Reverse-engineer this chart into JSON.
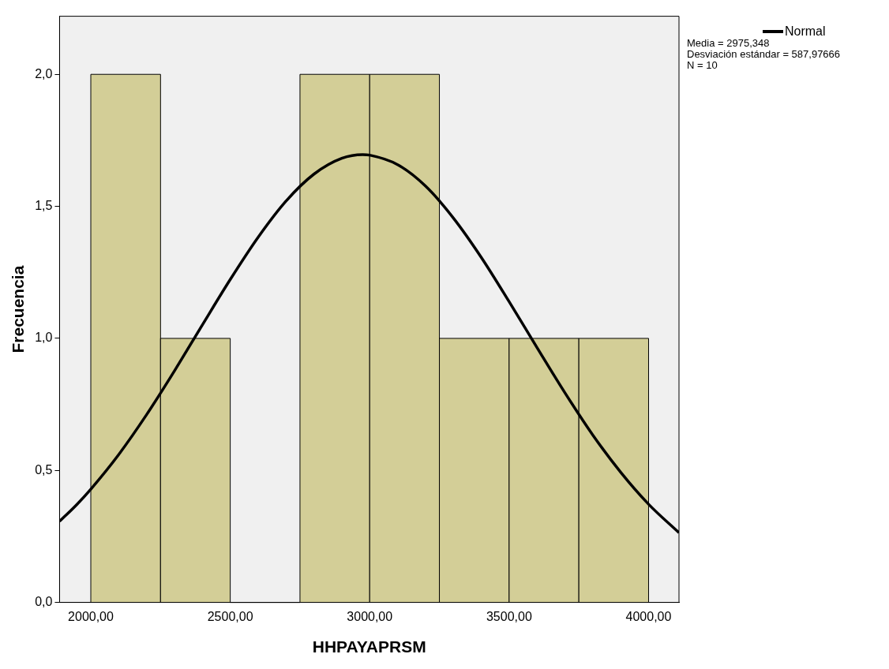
{
  "chart_data": {
    "type": "histogram",
    "xlabel": "HHPAYAPRSM",
    "ylabel": "Frecuencia",
    "bins": [
      2000,
      2250,
      2500,
      2750,
      3000,
      3250,
      3500,
      3750,
      4000
    ],
    "values": [
      2,
      1,
      0,
      2,
      2,
      1,
      1,
      1
    ],
    "color": "#d3ce97",
    "series": [
      {
        "type": "line",
        "name": "Normal",
        "color": "#000000",
        "x": [
          1888,
          1950,
          2000,
          2100,
          2200,
          2300,
          2400,
          2500,
          2600,
          2700,
          2800,
          2900,
          2975,
          3000,
          3100,
          3200,
          3300,
          3400,
          3500,
          3600,
          3700,
          3800,
          3900,
          4000,
          4109
        ],
        "values": [
          0.307,
          0.371,
          0.429,
          0.56,
          0.711,
          0.877,
          1.051,
          1.223,
          1.383,
          1.52,
          1.622,
          1.682,
          1.696,
          1.694,
          1.658,
          1.577,
          1.456,
          1.307,
          1.139,
          0.965,
          0.794,
          0.634,
          0.493,
          0.372,
          0.264
        ]
      }
    ],
    "xlim": [
      1888,
      4109
    ],
    "ylim": [
      0,
      2.22
    ],
    "xticks": [
      {
        "value": 2000,
        "label": "2000,00"
      },
      {
        "value": 2500,
        "label": "2500,00"
      },
      {
        "value": 3000,
        "label": "3000,00"
      },
      {
        "value": 3500,
        "label": "3500,00"
      },
      {
        "value": 4000,
        "label": "4000,00"
      }
    ],
    "yticks": [
      {
        "value": 0,
        "label": "0,0"
      },
      {
        "value": 0.5,
        "label": "0,5"
      },
      {
        "value": 1,
        "label": "1,0"
      },
      {
        "value": 1.5,
        "label": "1,5"
      },
      {
        "value": 2,
        "label": "2,0"
      }
    ],
    "grid": false,
    "legend": "top right",
    "line_style": "solid",
    "marker": "none",
    "annotations": [
      "Media = 2975,348",
      "Desviación estándar = 587,97666",
      "N = 10"
    ]
  }
}
